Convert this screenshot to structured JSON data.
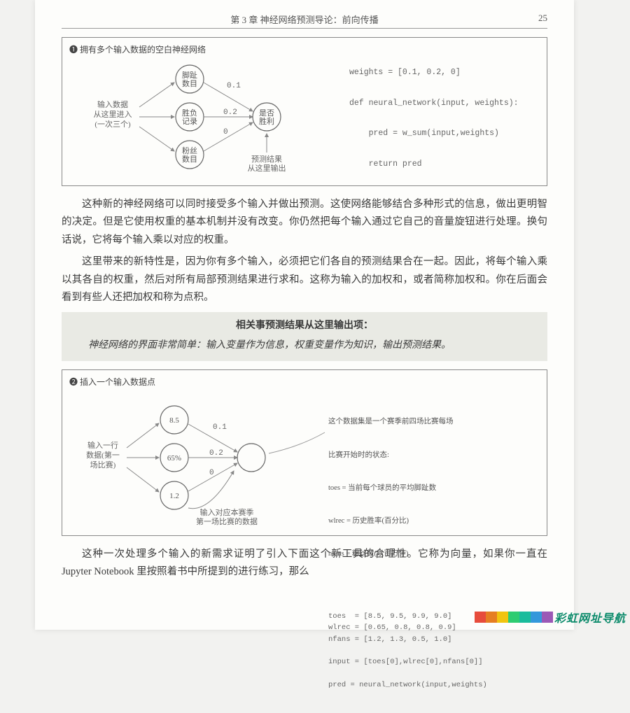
{
  "header": {
    "chapter": "第 3 章  神经网络预测导论：前向传播",
    "page": "25"
  },
  "box1": {
    "title": "❶ 拥有多个输入数据的空白神经网络",
    "input_label_l1": "输入数据",
    "input_label_l2": "从这里进入",
    "input_label_l3": "(一次三个)",
    "node1_l1": "脚趾",
    "node1_l2": "数目",
    "node2_l1": "胜负",
    "node2_l2": "记录",
    "node3_l1": "粉丝",
    "node3_l2": "数目",
    "out_l1": "是否",
    "out_l2": "胜利",
    "w1": "0.1",
    "w2": "0.2",
    "w3": "0",
    "pred_l1": "预测结果",
    "pred_l2": "从这里输出",
    "code": "weights = [0.1, 0.2, 0]\n\ndef neural_network(input, weights):\n\n    pred = w_sum(input,weights)\n\n    return pred"
  },
  "para1": "这种新的神经网络可以同时接受多个输入并做出预测。这使网络能够结合多种形式的信息，做出更明智的决定。但是它使用权重的基本机制并没有改变。你仍然把每个输入通过它自己的音量旋钮进行处理。换句话说，它将每个输入乘以对应的权重。",
  "para2": "这里带来的新特性是，因为你有多个输入，必须把它们各自的预测结果合在一起。因此，将每个输入乘以其各自的权重，然后对所有局部预测结果进行求和。这称为输入的加权和，或者简称加权和。你在后面会看到有些人还把加权和称为点积。",
  "highlight": {
    "title": "相关事预测结果从这里输出项：",
    "body": "神经网络的界面非常简单：输入变量作为信息，权重变量作为知识，输出预测结果。"
  },
  "box2": {
    "title": "❷ 插入一个输入数据点",
    "input_label_l1": "输入一行",
    "input_label_l2": "数据(第一",
    "input_label_l3": "场比赛)",
    "n1": "8.5",
    "n2": "65%",
    "n3": "1.2",
    "w1": "0.1",
    "w2": "0.2",
    "w3": "0",
    "note_l1": "输入对应本赛季",
    "note_l2": "第一场比赛的数据",
    "desc_l1": "这个数据集是一个赛季前四场比赛每场",
    "desc_l2": "比赛开始时的状态:",
    "desc_l3": "toes = 当前每个球员的平均脚趾数",
    "desc_l4": "wlrec = 历史胜率(百分比)",
    "desc_l5": "nfans = 粉丝数(以百万计)",
    "code2": "toes  = [8.5, 9.5, 9.9, 9.0]\nwlrec = [0.65, 0.8, 0.8, 0.9]\nnfans = [1.2, 1.3, 0.5, 1.0]\n\ninput = [toes[0],wlrec[0],nfans[0]]\n\npred = neural_network(input,weights)"
  },
  "para3": "这种一次处理多个输入的新需求证明了引入下面这个新工具的合理性。它称为向量，如果你一直在 Jupyter Notebook 里按照着书中所提到的进行练习，那么",
  "watermark": {
    "text": "彩虹网址导航",
    "colors": [
      "#e74c3c",
      "#e67e22",
      "#f1c40f",
      "#2ecc71",
      "#1abc9c",
      "#3498db",
      "#9b59b6"
    ]
  }
}
